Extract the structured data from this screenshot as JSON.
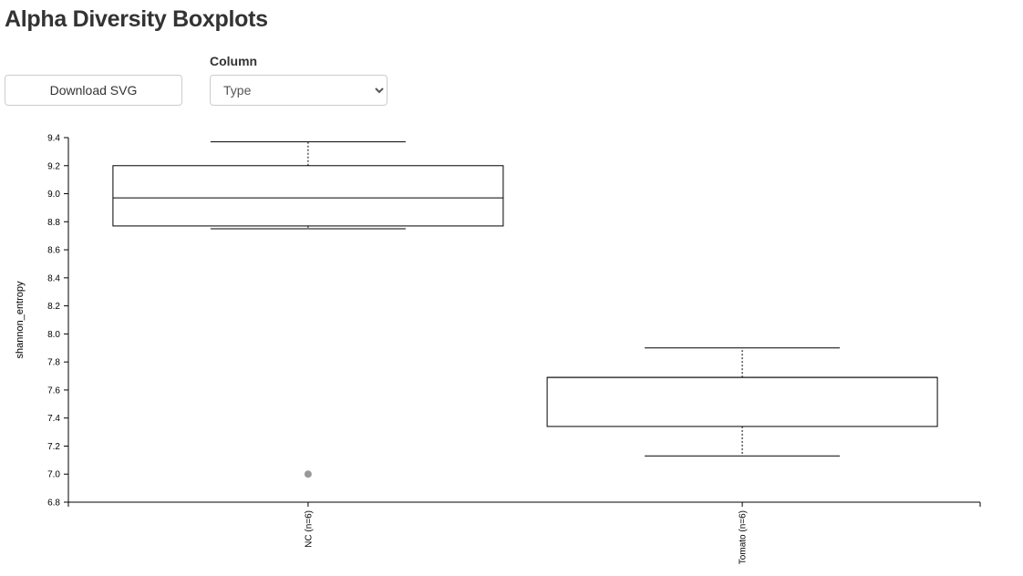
{
  "header": {
    "title": "Alpha Diversity Boxplots"
  },
  "toolbar": {
    "download_label": "Download SVG"
  },
  "column_select": {
    "label": "Column",
    "value": "Type",
    "options": [
      "Type"
    ]
  },
  "colors": {
    "box_stroke": "#000000",
    "outlier_fill": "#999999"
  },
  "chart_data": {
    "type": "box",
    "title": "",
    "xlabel": "",
    "ylabel": "shannon_entropy",
    "ylim": [
      6.8,
      9.4
    ],
    "yticks": [
      "6.8",
      "7.0",
      "7.2",
      "7.4",
      "7.6",
      "7.8",
      "8.0",
      "8.2",
      "8.4",
      "8.6",
      "8.8",
      "9.0",
      "9.2",
      "9.4"
    ],
    "categories": [
      "NC (n=6)",
      "Tomato (n=6)"
    ],
    "boxes": [
      {
        "category": "NC (n=6)",
        "whisker_low": 8.75,
        "q1": 8.77,
        "median": 8.97,
        "q3": 9.2,
        "whisker_high": 9.37,
        "outliers": [
          7.0
        ]
      },
      {
        "category": "Tomato (n=6)",
        "whisker_low": 7.13,
        "q1": 7.34,
        "median": 7.69,
        "q3": 7.69,
        "whisker_high": 7.9,
        "outliers": []
      }
    ]
  }
}
